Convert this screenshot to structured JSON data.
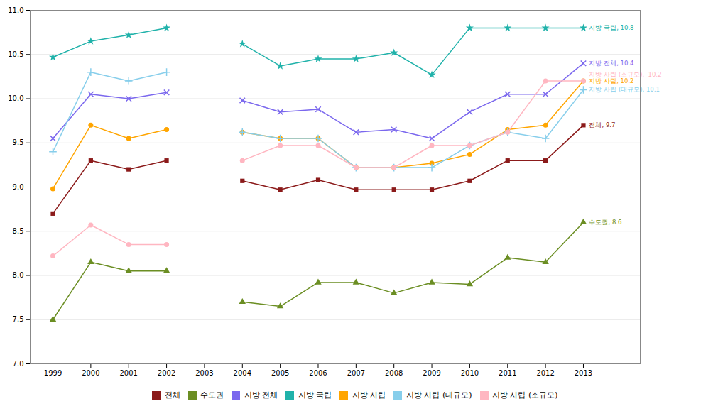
{
  "chart_data": {
    "type": "line",
    "x": [
      1999,
      2000,
      2001,
      2002,
      2003,
      2004,
      2005,
      2006,
      2007,
      2008,
      2009,
      2010,
      2011,
      2012,
      2013
    ],
    "series": [
      {
        "name": "전체",
        "color": "#8B1A1A",
        "marker": "square",
        "values": [
          8.7,
          9.3,
          9.2,
          9.3,
          null,
          9.07,
          8.97,
          9.08,
          8.97,
          8.97,
          8.97,
          9.07,
          9.3,
          9.3,
          9.7
        ]
      },
      {
        "name": "수도권",
        "color": "#6B8E23",
        "marker": "triangle",
        "values": [
          7.5,
          8.15,
          8.05,
          8.05,
          null,
          7.7,
          7.65,
          7.92,
          7.92,
          7.8,
          7.92,
          7.9,
          8.2,
          8.15,
          8.6
        ]
      },
      {
        "name": "지방 전체",
        "color": "#7B68EE",
        "marker": "x",
        "values": [
          9.55,
          10.05,
          10.0,
          10.07,
          null,
          9.98,
          9.85,
          9.88,
          9.62,
          9.65,
          9.55,
          9.85,
          10.05,
          10.05,
          10.4
        ]
      },
      {
        "name": "지방 국립",
        "color": "#20B2AA",
        "marker": "star",
        "values": [
          10.47,
          10.65,
          10.72,
          10.8,
          null,
          10.62,
          10.37,
          10.45,
          10.45,
          10.52,
          10.27,
          10.8,
          10.8,
          10.8,
          10.8
        ]
      },
      {
        "name": "지방 사립",
        "color": "#FFA500",
        "marker": "circle",
        "values": [
          8.98,
          9.7,
          9.55,
          9.65,
          null,
          9.62,
          9.55,
          9.55,
          9.22,
          9.22,
          9.27,
          9.37,
          9.65,
          9.7,
          10.2
        ]
      },
      {
        "name": "지방 사립 (대규모)",
        "color": "#87CEEB",
        "marker": "plus",
        "values": [
          9.4,
          10.3,
          10.2,
          10.3,
          null,
          9.62,
          9.55,
          9.55,
          9.22,
          9.22,
          9.22,
          9.47,
          9.62,
          9.55,
          10.1
        ]
      },
      {
        "name": "지방 사립 (소규모)",
        "color": "#FFB6C1",
        "marker": "circle",
        "values": [
          8.22,
          8.57,
          8.35,
          8.35,
          null,
          9.3,
          9.47,
          9.47,
          9.22,
          9.22,
          9.47,
          9.47,
          9.62,
          10.2,
          10.2
        ]
      }
    ],
    "xlim": [
      1998.4,
      2014.5
    ],
    "xticks": [
      1999,
      2000,
      2001,
      2002,
      2003,
      2004,
      2005,
      2006,
      2007,
      2008,
      2009,
      2010,
      2011,
      2012,
      2013
    ],
    "ylim": [
      7.0,
      11.0
    ],
    "yticks": [
      {
        "value": 7,
        "label": "7.0"
      },
      7.5,
      {
        "value": 8,
        "label": "8.0"
      },
      8.5,
      {
        "value": 9,
        "label": "9.0"
      },
      9.5,
      {
        "value": 10,
        "label": "10.0"
      },
      10.5,
      {
        "value": 11,
        "label": "11.0"
      }
    ],
    "grid": true,
    "legend": "bottom",
    "annotations": [
      {
        "text": "지방 국립, 10.8",
        "x": 2013.15,
        "y": 10.8,
        "color": "#20B2AA"
      },
      {
        "text": "지방 전체, 10.4",
        "x": 2013.15,
        "y": 10.4,
        "color": "#7B68EE"
      },
      {
        "text": "지방 사립 (소규모),  10.2",
        "x": 2013.15,
        "y": 10.27,
        "color": "#FFB6C1"
      },
      {
        "text": "지방 사립, 10.2",
        "x": 2013.15,
        "y": 10.2,
        "color": "#FFA500"
      },
      {
        "text": "지방 사립 (대규모), 10.1",
        "x": 2013.15,
        "y": 10.1,
        "color": "#87CEEB"
      },
      {
        "text": "전체, 9.7",
        "x": 2013.15,
        "y": 9.7,
        "color": "#8B1A1A"
      },
      {
        "text": "수도권, 8.6",
        "x": 2013.15,
        "y": 8.6,
        "color": "#6B8E23"
      }
    ]
  }
}
